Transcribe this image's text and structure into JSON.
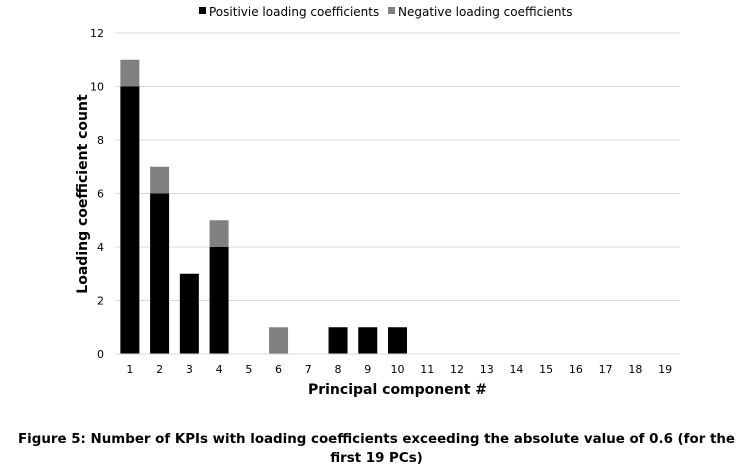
{
  "chart_data": {
    "type": "bar",
    "stacked": true,
    "categories": [
      "1",
      "2",
      "3",
      "4",
      "5",
      "6",
      "7",
      "8",
      "9",
      "10",
      "11",
      "12",
      "13",
      "14",
      "15",
      "16",
      "17",
      "18",
      "19"
    ],
    "series": [
      {
        "name": "Positivie loading coefficients",
        "color": "#000000",
        "values": [
          10,
          6,
          3,
          4,
          0,
          0,
          0,
          1,
          1,
          1,
          0,
          0,
          0,
          0,
          0,
          0,
          0,
          0,
          0
        ]
      },
      {
        "name": "Negative loading coefficients",
        "color": "#808080",
        "values": [
          1,
          1,
          0,
          1,
          0,
          1,
          0,
          0,
          0,
          0,
          0,
          0,
          0,
          0,
          0,
          0,
          0,
          0,
          0
        ]
      }
    ],
    "xlabel": "Principal component #",
    "ylabel": "Loading coefficient count",
    "ylim": [
      0,
      12
    ],
    "yticks": [
      0,
      2,
      4,
      6,
      8,
      10,
      12
    ],
    "grid": true,
    "legend_position": "top"
  },
  "caption": {
    "line1": "Figure 5: Number of KPIs with loading coefficients exceeding the absolute value of 0.6 (for the",
    "line2": "first 19 PCs)"
  }
}
